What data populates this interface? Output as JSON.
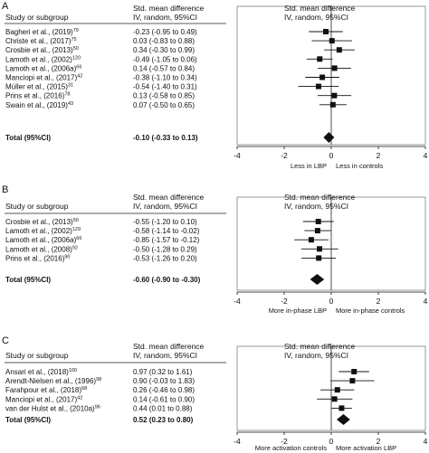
{
  "chart_data": [
    {
      "type": "forest",
      "panel": "A",
      "col_study": "Study or subgroup",
      "col_effect": [
        "Std. mean difference",
        "IV, random, 95%CI"
      ],
      "col_plot": [
        "Std. mean difference",
        "IV, random, 95%CI"
      ],
      "studies": [
        {
          "name": "Bagheri et al., (2019)",
          "ref": "79",
          "text": "-0.23 (-0.95 to 0.49)",
          "est": -0.23,
          "lo": -0.95,
          "hi": 0.49
        },
        {
          "name": "Christe et al., (2017)",
          "ref": "75",
          "text": "0.03 (-0.83 to 0.88)",
          "est": 0.03,
          "lo": -0.83,
          "hi": 0.88
        },
        {
          "name": "Crosbie et al., (2013)",
          "ref": "50",
          "text": "0.34 (-0.30 to 0.99)",
          "est": 0.34,
          "lo": -0.3,
          "hi": 0.99
        },
        {
          "name": "Lamoth et al., (2002)",
          "ref": "120",
          "text": "-0.49 (-1.05 to 0.06)",
          "est": -0.49,
          "lo": -1.05,
          "hi": 0.06
        },
        {
          "name": "Lamoth et al., (2006a)",
          "ref": "66",
          "text": "0.14 (-0.57 to 0.84)",
          "est": 0.14,
          "lo": -0.57,
          "hi": 0.84
        },
        {
          "name": "Manciopi et al., (2017)",
          "ref": "42",
          "text": "-0.38 (-1.10 to 0.34)",
          "est": -0.38,
          "lo": -1.1,
          "hi": 0.34
        },
        {
          "name": "Müller et al., (2015)",
          "ref": "31",
          "text": "-0.54 (-1.40 to 0.31)",
          "est": -0.54,
          "lo": -1.4,
          "hi": 0.31
        },
        {
          "name": "Prins et al., (2016)",
          "ref": "78",
          "text": "0.13 (-0.58 to 0.85)",
          "est": 0.13,
          "lo": -0.58,
          "hi": 0.85
        },
        {
          "name": "Swain et al., (2019)",
          "ref": "43",
          "text": "0.07 (-0.50 to 0.65)",
          "est": 0.07,
          "lo": -0.5,
          "hi": 0.65
        }
      ],
      "total": {
        "label": "Total (95%CI)",
        "text": "-0.10 (-0.33 to 0.13)",
        "est": -0.1,
        "lo": -0.33,
        "hi": 0.13
      },
      "xlim": [
        -4,
        4
      ],
      "ticks": [
        "-4",
        "-2",
        "0",
        "2",
        "4"
      ],
      "favours_left": "Less in LBP",
      "favours_right": "Less in  controls"
    },
    {
      "type": "forest",
      "panel": "B",
      "col_study": "Study or subgroup",
      "col_effect": [
        "Std. mean difference",
        "IV, random, 95%CI"
      ],
      "col_plot": [
        "Std. mean difference",
        "IV, random, 95%CI"
      ],
      "studies": [
        {
          "name": "Crosbie et al., (2013)",
          "ref": "50",
          "text": "-0.55 (-1.20 to 0.10)",
          "est": -0.55,
          "lo": -1.2,
          "hi": 0.1
        },
        {
          "name": "Lamoth et al., (2002)",
          "ref": "129",
          "text": "-0.58 (-1.14 to -0.02)",
          "est": -0.58,
          "lo": -1.14,
          "hi": -0.02
        },
        {
          "name": "Lamoth et al., (2006a)",
          "ref": "66",
          "text": "-0.85 (-1.57 to -0.12)",
          "est": -0.85,
          "lo": -1.57,
          "hi": -0.12
        },
        {
          "name": "Lamoth et al., (2008)",
          "ref": "92",
          "text": "-0.50 (-1.28 to 0.29)",
          "est": -0.5,
          "lo": -1.28,
          "hi": 0.29
        },
        {
          "name": "Prins et al., (2016)",
          "ref": "90",
          "text": "-0.53 (-1.26 to 0.20)",
          "est": -0.53,
          "lo": -1.26,
          "hi": 0.2
        }
      ],
      "total": {
        "label": "Total (95%CI)",
        "text": "-0.60 (-0.90 to -0.30)",
        "est": -0.6,
        "lo": -0.9,
        "hi": -0.3
      },
      "xlim": [
        -4,
        4
      ],
      "ticks": [
        "-4",
        "-2",
        "0",
        "2",
        "4"
      ],
      "favours_left": "More in-phase LBP",
      "favours_right": "More in-phase controls"
    },
    {
      "type": "forest",
      "panel": "C",
      "col_study": "Study or subgroup",
      "col_effect": [
        "Std. mean difference",
        "IV, random, 95%CI"
      ],
      "col_plot": [
        "Std. mean difference",
        "IV, random, 95%CI"
      ],
      "studies": [
        {
          "name": "Ansari et al., (2018)",
          "ref": "100",
          "text": "0.97 (0.32 to 1.61)",
          "est": 0.97,
          "lo": 0.32,
          "hi": 1.61
        },
        {
          "name": "Arendt-Nielsen et al., (1996)",
          "ref": "98",
          "text": "0.90 (-0.03 to 1.83)",
          "est": 0.9,
          "lo": -0.03,
          "hi": 1.83
        },
        {
          "name": "Farahpour et al., (2018)",
          "ref": "68",
          "text": "0.26 (-0.46 to 0.98)",
          "est": 0.26,
          "lo": -0.46,
          "hi": 0.98
        },
        {
          "name": "Manciopi et al., (2017)",
          "ref": "42",
          "text": "0.14 (-0.61 to 0.90)",
          "est": 0.14,
          "lo": -0.61,
          "hi": 0.9
        },
        {
          "name": "van der Hulst et al., (2010a)",
          "ref": "96",
          "text": "0.44 (0.01 to 0.88)",
          "est": 0.44,
          "lo": 0.01,
          "hi": 0.88
        }
      ],
      "total": {
        "label": "Total (95%CI)",
        "text": "0.52 (0.23 to 0.80)",
        "est": 0.52,
        "lo": 0.23,
        "hi": 0.8
      },
      "xlim": [
        -4,
        4
      ],
      "ticks": [
        "-4",
        "-2",
        "0",
        "2",
        "4"
      ],
      "favours_left": "More activation  controls",
      "favours_right": "More activation LBP"
    }
  ]
}
